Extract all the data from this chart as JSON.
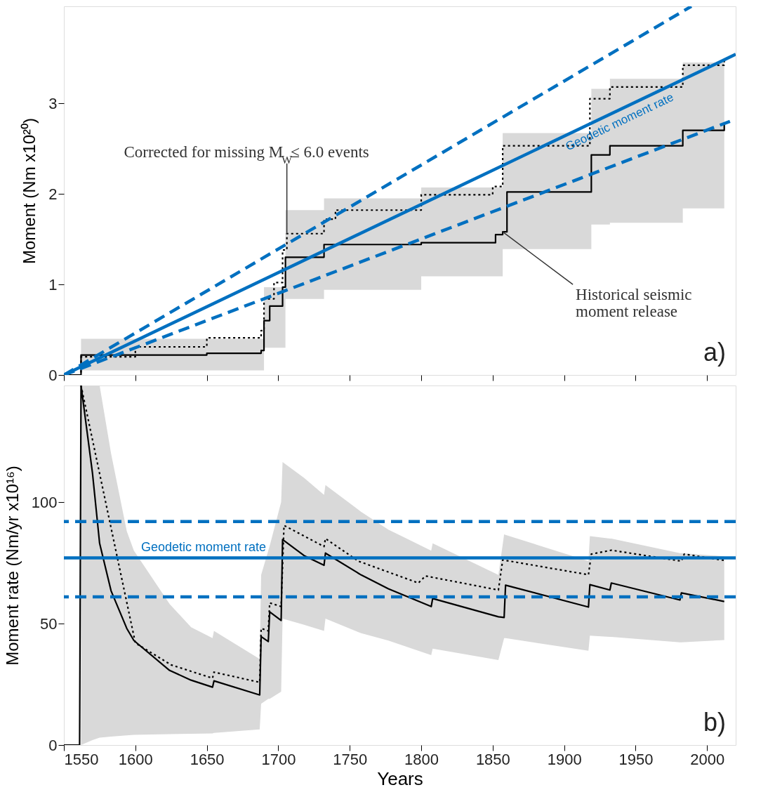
{
  "chart_data": [
    {
      "type": "step",
      "ylabel": "Moment (Nm x10²⁰)",
      "xlim": [
        1550,
        2020
      ],
      "xticks": [
        1550,
        1600,
        1650,
        1700,
        1750,
        1800,
        1850,
        1900,
        1950,
        2000
      ],
      "ylim": [
        0,
        4.07
      ],
      "yticks": [
        0,
        1,
        2,
        3
      ],
      "tick_labels": "y",
      "grid": false,
      "series": [
        {
          "color": "#000000",
          "line_style": "solid",
          "x": [
            1550,
            1562,
            1650,
            1688,
            1690,
            1694,
            1703,
            1705,
            1732,
            1800,
            1852,
            1857,
            1860,
            1919,
            1932,
            1983,
            2012
          ],
          "values": [
            0,
            0.22,
            0.24,
            0.27,
            0.6,
            0.76,
            0.97,
            1.3,
            1.44,
            1.46,
            1.55,
            1.58,
            2.02,
            2.43,
            2.53,
            2.7,
            2.76
          ],
          "lower": [
            null,
            0.05,
            0.05,
            0.05,
            0.3,
            0.3,
            0.3,
            0.84,
            0.94,
            1.09,
            1.09,
            1.39,
            1.39,
            1.66,
            1.68,
            1.84,
            1.84
          ],
          "upper": [
            null,
            0.4,
            0.4,
            0.4,
            0.97,
            0.97,
            0.97,
            1.82,
            1.95,
            2.07,
            2.07,
            2.67,
            2.67,
            3.16,
            3.27,
            3.45,
            3.45
          ]
        },
        {
          "color": "#000000",
          "line_style": "dotted",
          "x": [
            1550,
            1562,
            1600,
            1650,
            1688,
            1690,
            1697,
            1703,
            1706,
            1732,
            1740,
            1800,
            1850,
            1857,
            1918,
            1932,
            1983,
            2012
          ],
          "values": [
            0,
            0.2,
            0.31,
            0.41,
            0.49,
            0.84,
            1.02,
            1.38,
            1.56,
            1.72,
            1.82,
            1.99,
            2.08,
            2.53,
            3.05,
            3.18,
            3.42,
            3.48
          ]
        },
        {
          "type": "line",
          "name": "Geodetic moment rate",
          "color": "#0070c0",
          "line_style": "solid",
          "x": [
            1550,
            2020
          ],
          "values": [
            0,
            3.54
          ]
        },
        {
          "type": "line",
          "color": "#0070c0",
          "line_style": "dashed",
          "x": [
            1550,
            1989
          ],
          "values": [
            0,
            4.07
          ]
        },
        {
          "type": "line",
          "color": "#0070c0",
          "line_style": "dashed",
          "x": [
            1550,
            2016
          ],
          "values": [
            0,
            2.8
          ]
        }
      ],
      "annotations": [
        {
          "text": "Corrected for missing M$_{W}$≤ 6.0 events",
          "x": 1706,
          "y": 1.56
        },
        {
          "text": "Historical seismic\nmoment release",
          "x": 1857,
          "y": 1.58
        },
        "a)"
      ]
    },
    {
      "type": "line",
      "xlabel": "Years",
      "ylabel": "Moment rate (Nm/yr x10¹⁶)",
      "xlim": [
        1550,
        2020
      ],
      "xticks": [
        1550,
        1600,
        1650,
        1700,
        1750,
        1800,
        1850,
        1900,
        1950,
        2000
      ],
      "ylim": [
        0,
        148
      ],
      "yticks": [
        0,
        50,
        100
      ],
      "grid": false,
      "series": [
        {
          "color": "#000000",
          "line_style": "solid",
          "x": [
            1550,
            1561,
            1562,
            1570,
            1575,
            1583,
            1594,
            1599,
            1624,
            1639,
            1654,
            1655,
            1687,
            1688,
            1693,
            1694,
            1702,
            1703,
            1718,
            1732,
            1733,
            1758,
            1777,
            1807,
            1808,
            1854,
            1858,
            1859,
            1917,
            1918,
            1932,
            1933,
            1981,
            1982,
            2012
          ],
          "values": [
            0,
            0,
            148,
            112,
            83,
            63.5,
            48,
            43,
            30.7,
            26.7,
            23.8,
            26.4,
            20.6,
            44.6,
            42.6,
            54.8,
            51.3,
            84.6,
            78,
            74,
            79,
            70,
            64.3,
            57,
            60.3,
            52.8,
            52.5,
            65.8,
            56.8,
            66,
            63.8,
            66.7,
            59.7,
            62.6,
            59.1
          ],
          "lower": [
            null,
            null,
            0,
            2,
            3,
            3.5,
            4,
            4.2,
            4.5,
            4.6,
            4.8,
            5,
            6.4,
            17,
            19,
            19,
            22,
            52,
            49.5,
            47,
            52,
            46,
            43,
            37,
            39.7,
            35,
            44,
            44,
            38.8,
            45,
            44.5,
            44.5,
            42.3,
            42.3,
            43.2
          ],
          "upper": [
            null,
            null,
            148,
            148,
            148,
            120,
            88,
            80,
            58,
            48.5,
            44,
            47,
            35.4,
            70,
            80,
            82,
            100,
            116.5,
            110,
            103,
            107,
            96,
            88.7,
            80,
            83,
            70,
            86.7,
            86.5,
            75.7,
            86,
            85,
            85,
            79,
            79,
            77.7
          ]
        },
        {
          "color": "#000000",
          "line_style": "dotted",
          "x": [
            1562,
            1600,
            1625,
            1654,
            1655,
            1687,
            1688,
            1693,
            1694,
            1702,
            1704,
            1732,
            1733,
            1756,
            1798,
            1803,
            1854,
            1857,
            1917,
            1919,
            1933,
            1982,
            1984,
            2012
          ],
          "values": [
            148,
            42,
            33,
            27.5,
            30,
            25.8,
            48,
            47,
            58.5,
            57,
            90.4,
            81.7,
            85,
            75.7,
            66.7,
            69.6,
            63.8,
            76.2,
            70.1,
            78.6,
            80.2,
            75.7,
            78.6,
            76
          ]
        }
      ],
      "ref_lines": [
        {
          "axis": "y",
          "value": 92,
          "color": "#0070c0",
          "line_style": "dashed"
        },
        {
          "axis": "y",
          "value": 77,
          "color": "#0070c0",
          "line_style": "solid",
          "label": "Geodetic moment rate"
        },
        {
          "axis": "y",
          "value": 61,
          "color": "#0070c0",
          "line_style": "dashed"
        }
      ],
      "annotations": [
        "b)"
      ]
    }
  ]
}
